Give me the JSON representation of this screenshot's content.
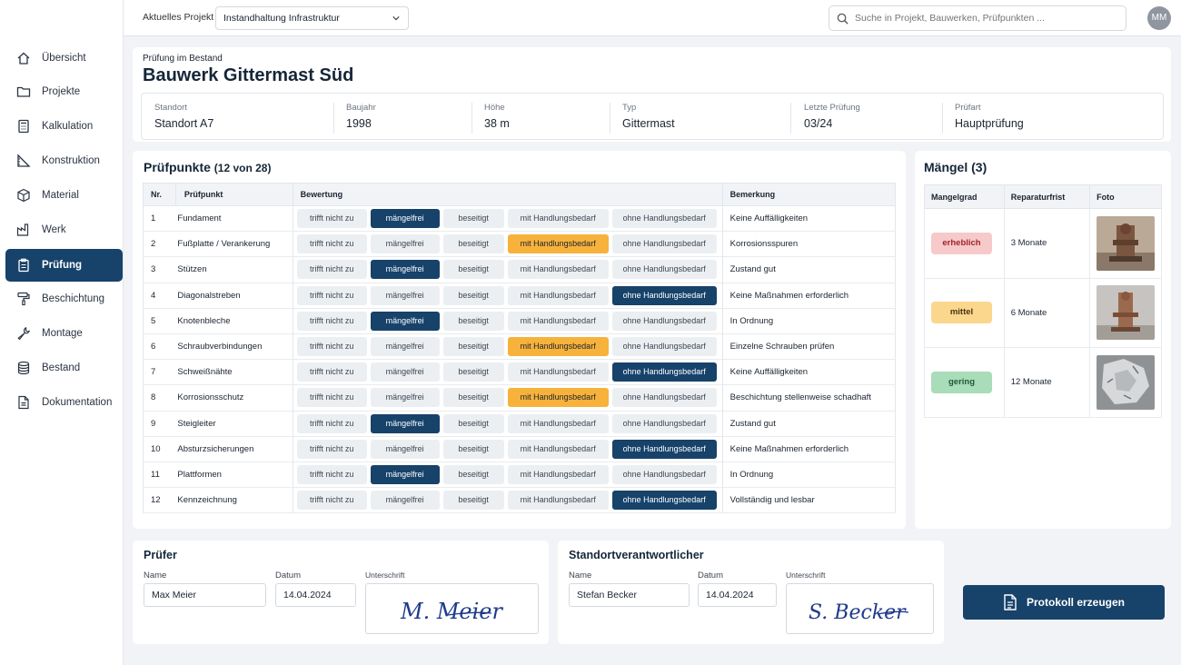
{
  "topbar": {
    "project_label": "Aktuelles Projekt",
    "project_value": "Instandhaltung Infrastruktur",
    "search_placeholder": "Suche in Projekt, Bauwerken, Prüfpunkten ...",
    "user_initials": "MM"
  },
  "sidebar": {
    "items": [
      {
        "label": "Übersicht",
        "icon": "home-icon"
      },
      {
        "label": "Projekte",
        "icon": "folder-icon"
      },
      {
        "label": "Kalkulation",
        "icon": "calculator-icon"
      },
      {
        "label": "Konstruktion",
        "icon": "ruler-icon"
      },
      {
        "label": "Material",
        "icon": "cube-icon"
      },
      {
        "label": "Werk",
        "icon": "factory-icon"
      },
      {
        "label": "Prüfung",
        "icon": "clipboard-icon",
        "active": true
      },
      {
        "label": "Beschichtung",
        "icon": "paint-roller-icon"
      },
      {
        "label": "Montage",
        "icon": "wrench-icon"
      },
      {
        "label": "Bestand",
        "icon": "database-icon"
      },
      {
        "label": "Dokumentation",
        "icon": "document-icon"
      }
    ]
  },
  "header": {
    "subtitle": "Prüfung im Bestand",
    "title": "Bauwerk Gittermast Süd",
    "info": [
      {
        "label": "Standort",
        "value": "Standort A7"
      },
      {
        "label": "Baujahr",
        "value": "1998"
      },
      {
        "label": "Höhe",
        "value": "38 m"
      },
      {
        "label": "Typ",
        "value": "Gittermast"
      },
      {
        "label": "Letzte Prüfung",
        "value": "03/24"
      },
      {
        "label": "Prüfart",
        "value": "Hauptprüfung"
      }
    ]
  },
  "pruefpunkte": {
    "title": "Prüfpunkte",
    "count": "(12 von 28)",
    "columns": [
      "Nr.",
      "Prüfpunkt",
      "Bewertung",
      "Bemerkung"
    ],
    "options": [
      "trifft nicht zu",
      "mängelfrei",
      "beseitigt",
      "mit Handlungsbedarf",
      "ohne Handlungsbedarf"
    ],
    "rows": [
      {
        "nr": "1",
        "name": "Fundament",
        "o": [
          "trifft nicht zu",
          "mängelfrei",
          "beseitigt",
          "mit Handlungsbedarf",
          "ohne Handlungsbedarf"
        ],
        "selected": 1,
        "remark": "Keine Auffälligkeiten"
      },
      {
        "nr": "2",
        "name": "Fußplatte / Verankerung",
        "o": [
          "trifft nicht zu",
          "mängelfrei",
          "beseitigt",
          "mit Handlungsbedarf",
          "ohne Handlungsbedarf"
        ],
        "selected": 3,
        "remark": "Korrosionsspuren"
      },
      {
        "nr": "3",
        "name": "Stützen",
        "o": [
          "trifft nicht zu",
          "mängelfrei",
          "beseitigt",
          "mit Handlungsbedarf",
          "ohne Handlungsbedarf"
        ],
        "selected": 1,
        "remark": "Zustand gut"
      },
      {
        "nr": "4",
        "name": "Diagonalstreben",
        "o": [
          "trifft nicht zu",
          "mängelfrei",
          "beseitigt",
          "mit Handlungsbedarf",
          "ohne Handlungsbedarf"
        ],
        "selected": 4,
        "sel_text": "ohne Handlungsbedarf",
        "remark": "Keine Maßnahmen erforderlich"
      },
      {
        "nr": "5",
        "name": "Knotenbleche",
        "o": [
          "trifft nicht zu",
          "mängelfrei",
          "beseitigt",
          "mit Handlungsbedarf",
          "ohne Handlungsbedarf"
        ],
        "selected": 1,
        "remark": "In Ordnung"
      },
      {
        "nr": "6",
        "name": "Schraubverbindungen",
        "o": [
          "trifft nicht zu",
          "mängelfrei",
          "beseitigt",
          "mit Handlungsbedarf",
          "ohne Handlungsbedarf"
        ],
        "selected": 3,
        "remark": "Einzelne Schrauben prüfen"
      },
      {
        "nr": "7",
        "name": "Schweißnähte",
        "o": [
          "trifft nicht zu",
          "mängelfrei",
          "beseitigt",
          "mit Handlungsbedarf",
          "ohne Handlungsbedarf"
        ],
        "selected": 4,
        "remark": "Keine Auffälligkeiten"
      },
      {
        "nr": "8",
        "name": "Korrosionsschutz",
        "o": [
          "trifft nicht zu",
          "mängelfrei",
          "beseitigt",
          "mit Handlungsbedarf",
          "ohne Handlungsbedarf"
        ],
        "selected": 3,
        "remark": "Beschichtung stellenweise schadhaft"
      },
      {
        "nr": "9",
        "name": "Steigleiter",
        "o": [
          "trifft nicht zu",
          "mängelfrei",
          "beseitigt",
          "mit Handlungsbedarf",
          "ohne Handlungsbedarf"
        ],
        "selected": 1,
        "remark": "Zustand gut"
      },
      {
        "nr": "10",
        "name": "Absturzsicherungen",
        "o": [
          "trifft nicht zu",
          "mängelfrei",
          "beseitigt",
          "mit Handlungsbedarf",
          "ohne Handlungsbedarf"
        ],
        "selected": 4,
        "remark": "Keine Maßnahmen erforderlich"
      },
      {
        "nr": "11",
        "name": "Plattformen",
        "o": [
          "trifft nicht zu",
          "mängelfrei",
          "beseitigt",
          "mit Handlungsbedarf",
          "ohne Handlungsbedarf"
        ],
        "selected": 1,
        "remark": "In Ordnung"
      },
      {
        "nr": "12",
        "name": "Kennzeichnung",
        "o": [
          "trifft nicht zu",
          "mängelfrei",
          "beseitigt",
          "mit Handlungsbedarf",
          "ohne Handlungsbedarf"
        ],
        "selected": 4,
        "remark": "Vollständig und lesbar"
      }
    ]
  },
  "maengel": {
    "title": "Mängel (3)",
    "columns": [
      "Mangelgrad",
      "Reparaturfrist",
      "Foto"
    ],
    "rows": [
      {
        "grade": "erheblich",
        "deadline": "3 Monate",
        "color": "#f6c9cb",
        "text_color": "#a3222c"
      },
      {
        "grade": "mittel",
        "deadline": "6 Monate",
        "color": "#fbd78e",
        "text_color": "#4a3410"
      },
      {
        "grade": "gering",
        "deadline": "12 Monate",
        "color": "#a9dcb8",
        "text_color": "#1f5c34"
      }
    ]
  },
  "pruefer": {
    "title": "Prüfer",
    "name_label": "Name",
    "name": "Max Meier",
    "date_label": "Datum",
    "date": "14.04.2024",
    "sig_label": "Unterschrift",
    "signature": "M. Meier"
  },
  "standort": {
    "title": "Standortverantwortlicher",
    "name_label": "Name",
    "name": "Stefan Becker",
    "date_label": "Datum",
    "date": "14.04.2024",
    "sig_label": "Unterschrift",
    "signature": "S. Becker"
  },
  "actions": {
    "protokoll": "Protokoll erzeugen"
  },
  "colors": {
    "primary": "#17426a",
    "warning": "#f7b23b",
    "background": "#f1f3f6"
  }
}
